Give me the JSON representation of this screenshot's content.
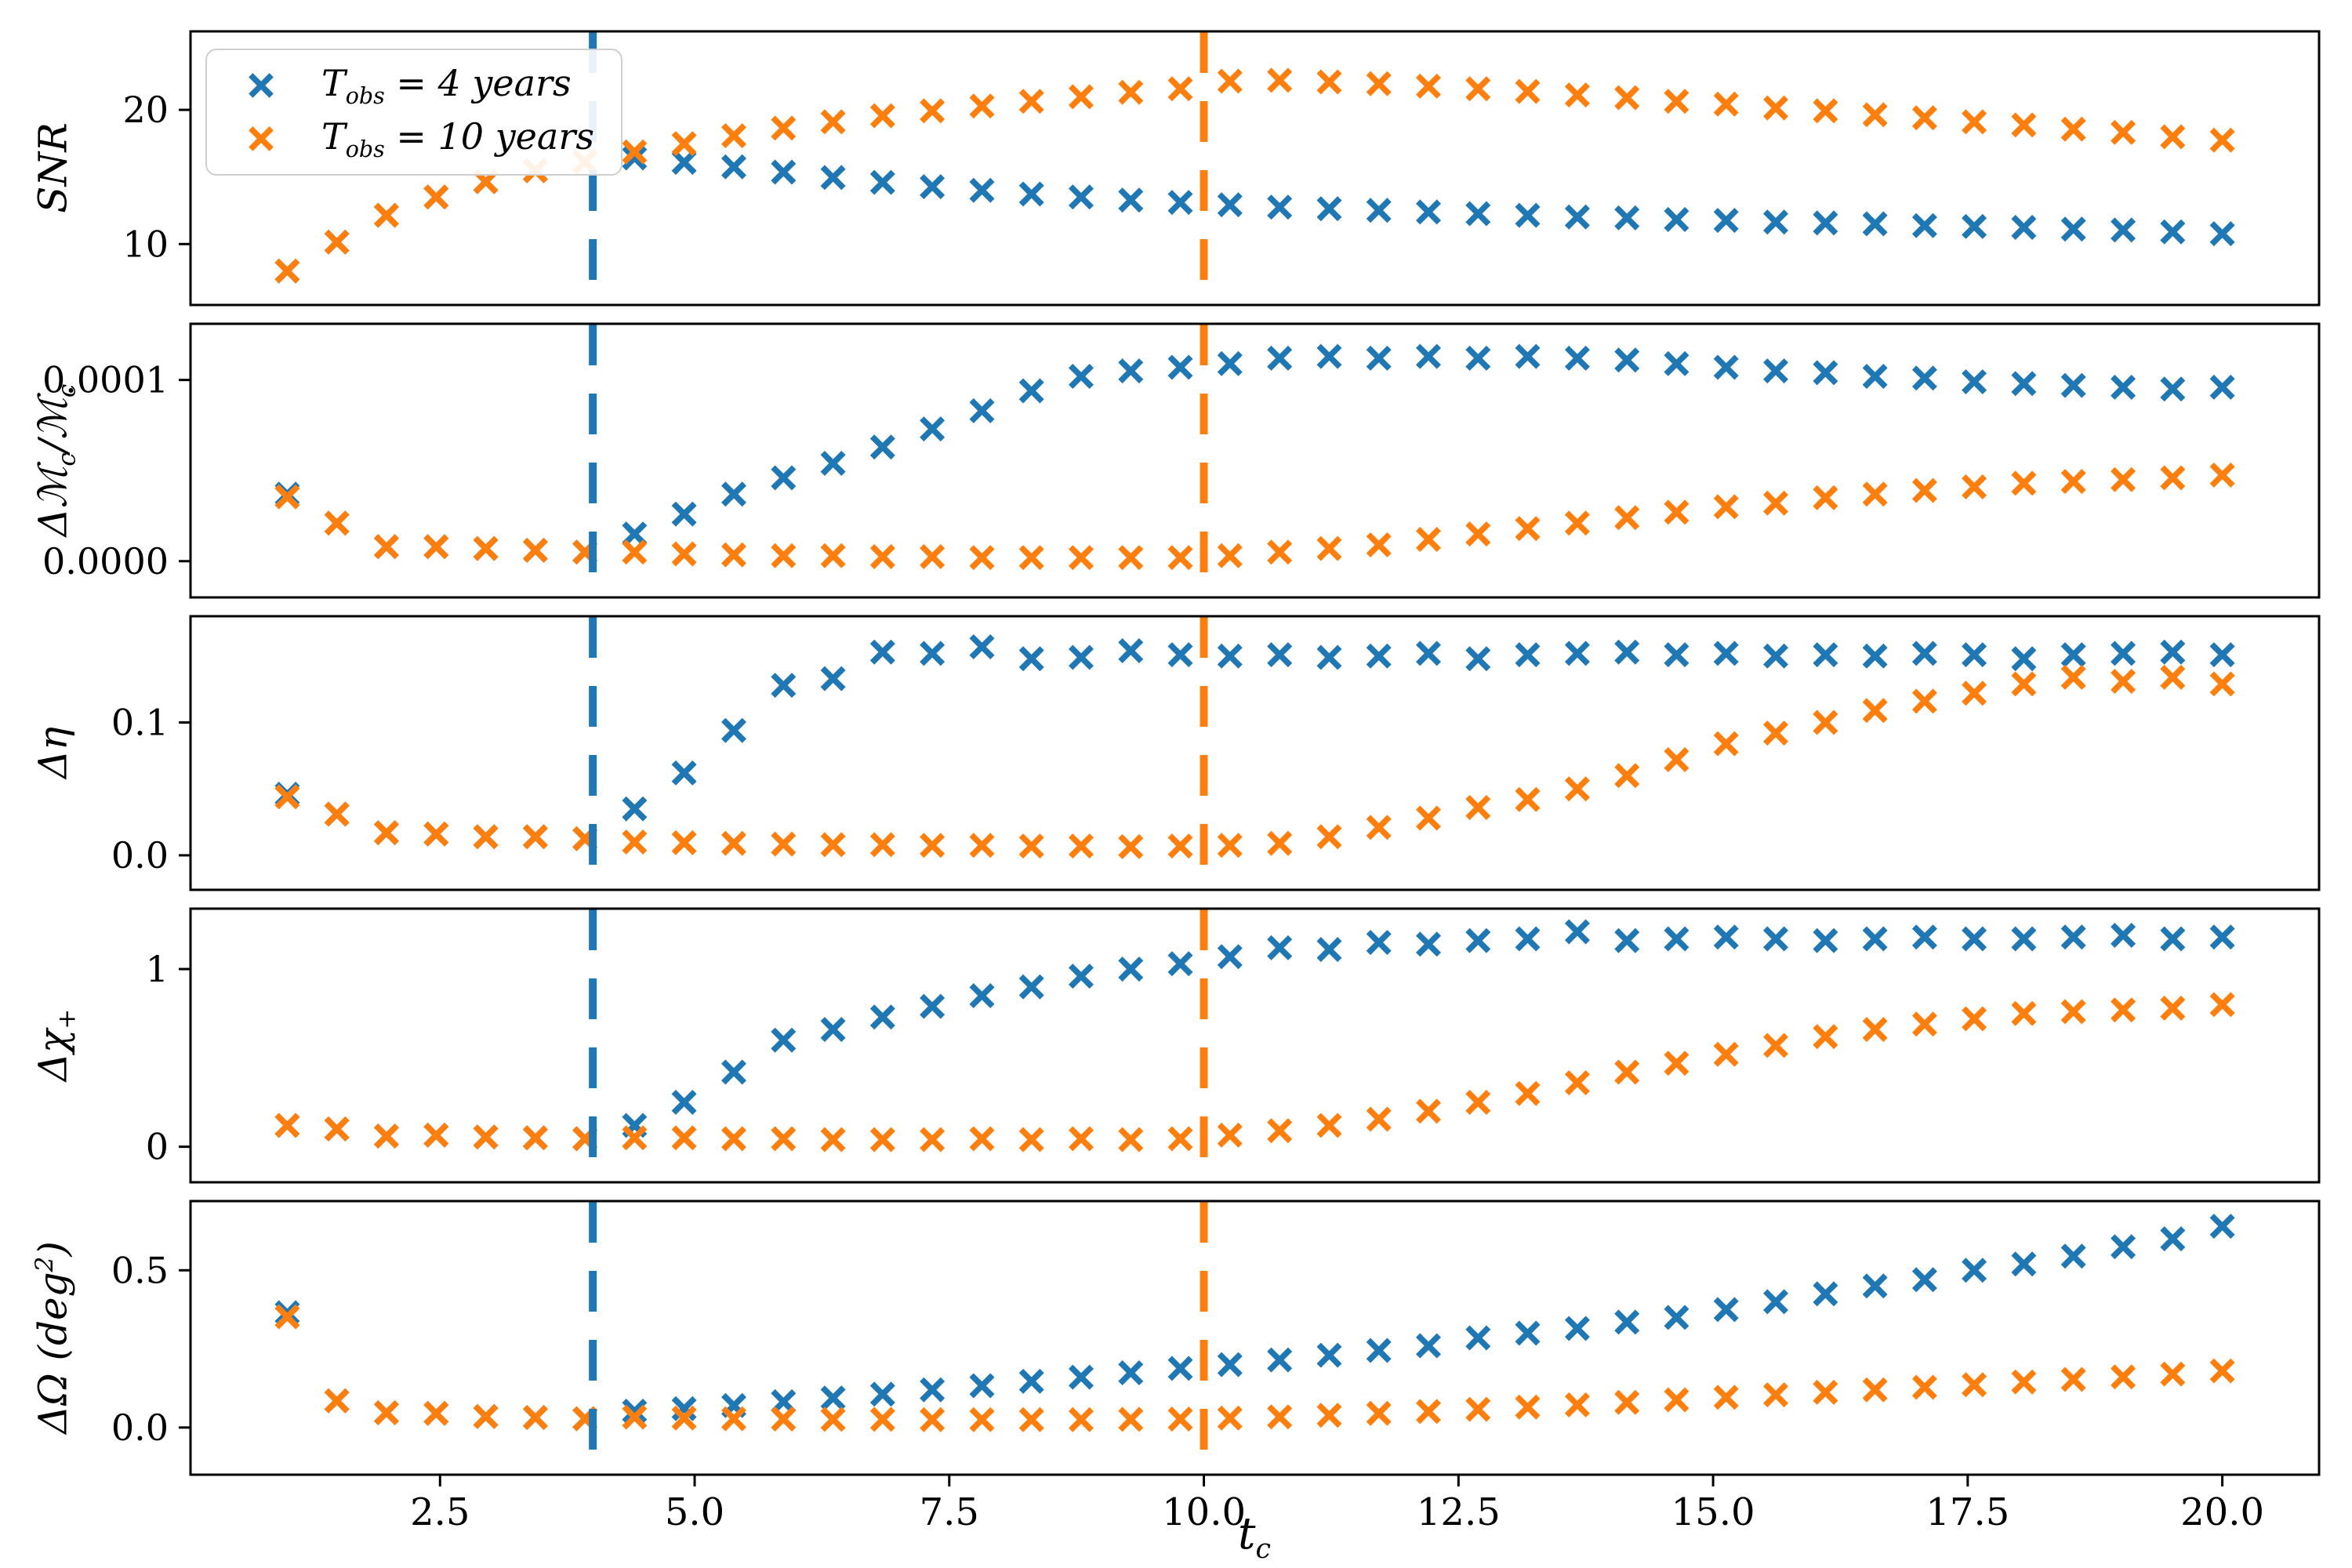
{
  "colors": {
    "blue": "#1f77b4",
    "orange": "#ff7f0e",
    "axis": "#000000",
    "legend_border": "#cfcfcf"
  },
  "legend": {
    "items": [
      {
        "color_key": "blue",
        "p0": "T",
        "s0": "obs",
        "p1": " = 4 years"
      },
      {
        "color_key": "orange",
        "p0": "T",
        "s0": "obs",
        "p1": " = 10 years"
      }
    ]
  },
  "xlabel": {
    "p0": "t",
    "s0": "c"
  },
  "xticks": {
    "values": [
      2.5,
      5.0,
      7.5,
      10.0,
      12.5,
      15.0,
      17.5,
      20.0
    ],
    "labels": [
      "2.5",
      "5.0",
      "7.5",
      "10.0",
      "12.5",
      "15.0",
      "17.5",
      "20.0"
    ]
  },
  "vlines": [
    {
      "x": 4,
      "color_key": "blue"
    },
    {
      "x": 10,
      "color_key": "orange"
    }
  ],
  "ylabels": [
    {
      "p0": "SNR"
    },
    {
      "p0": "Δℳ",
      "s0": "c",
      "p1": "/ℳ",
      "s1": "c"
    },
    {
      "p0": "Δη"
    },
    {
      "p0": "Δχ",
      "s0": "+"
    },
    {
      "p0": "ΔΩ (deg",
      "sup0": "2",
      "p3": ")"
    }
  ],
  "chart_data": {
    "type": "scatter",
    "title": "",
    "xlabel": "t_c",
    "xlim": [
      0.05,
      20.95
    ],
    "legend_position": "upper-left of top panel",
    "grid": false,
    "series_names": [
      "T_obs = 4 years",
      "T_obs = 10 years"
    ],
    "vlines": [
      {
        "x": 4,
        "series": "T_obs = 4 years"
      },
      {
        "x": 10,
        "series": "T_obs = 10 years"
      }
    ],
    "x": [
      1.0,
      1.487,
      1.974,
      2.462,
      2.949,
      3.436,
      3.923,
      4.41,
      4.897,
      5.385,
      5.872,
      6.359,
      6.846,
      7.333,
      7.821,
      8.308,
      8.795,
      9.282,
      9.769,
      10.256,
      10.744,
      11.231,
      11.718,
      12.205,
      12.692,
      13.179,
      13.667,
      14.154,
      14.641,
      15.128,
      15.615,
      16.103,
      16.59,
      17.077,
      17.564,
      18.051,
      18.538,
      19.026,
      19.513,
      20.0
    ],
    "panels": [
      {
        "id": "snr",
        "ylabel_text": "SNR",
        "yscale": "log",
        "ylim": [
          7.3,
          30
        ],
        "yticks": {
          "values": [
            10,
            20
          ],
          "labels": [
            "10",
            "20"
          ]
        },
        "blue": [
          8.7,
          10.1,
          11.6,
          12.75,
          13.8,
          14.6,
          15.3,
          15.6,
          15.25,
          14.9,
          14.5,
          14.1,
          13.75,
          13.45,
          13.2,
          12.95,
          12.75,
          12.55,
          12.4,
          12.25,
          12.1,
          12.0,
          11.9,
          11.8,
          11.7,
          11.6,
          11.5,
          11.45,
          11.35,
          11.3,
          11.2,
          11.15,
          11.1,
          11.0,
          10.95,
          10.9,
          10.8,
          10.75,
          10.65,
          10.55
        ],
        "orange": [
          8.7,
          10.1,
          11.6,
          12.75,
          13.8,
          14.6,
          15.3,
          16.1,
          16.8,
          17.5,
          18.2,
          18.8,
          19.4,
          19.9,
          20.4,
          20.9,
          21.4,
          21.9,
          22.3,
          23.2,
          23.3,
          23.1,
          22.9,
          22.6,
          22.3,
          22.0,
          21.6,
          21.3,
          20.9,
          20.6,
          20.2,
          19.9,
          19.5,
          19.2,
          18.8,
          18.5,
          18.1,
          17.8,
          17.4,
          17.1
        ]
      },
      {
        "id": "mchirp",
        "ylabel_text": "ΔM_c/M_c",
        "yscale": "linear",
        "ylim": [
          -2e-05,
          0.000131
        ],
        "yticks": {
          "values": [
            0.0,
            0.0001
          ],
          "labels": [
            "0.0000",
            "0.0001"
          ]
        },
        "blue": [
          3.7e-05,
          2.1e-05,
          8e-06,
          8e-06,
          7e-06,
          6e-06,
          5e-06,
          1.5e-05,
          2.6e-05,
          3.7e-05,
          4.6e-05,
          5.4e-05,
          6.3e-05,
          7.3e-05,
          8.3e-05,
          9.4e-05,
          0.000102,
          0.000105,
          0.000107,
          0.000109,
          0.000112,
          0.000113,
          0.000112,
          0.000113,
          0.000112,
          0.000113,
          0.000112,
          0.000111,
          0.000109,
          0.000107,
          0.000105,
          0.000104,
          0.000102,
          0.000101,
          9.9e-05,
          9.8e-05,
          9.7e-05,
          9.6e-05,
          9.5e-05,
          9.6e-05
        ],
        "orange": [
          3.55e-05,
          2.1e-05,
          8e-06,
          8e-06,
          7e-06,
          6e-06,
          5e-06,
          5e-06,
          4e-06,
          3.5e-06,
          3e-06,
          3e-06,
          2.5e-06,
          2.5e-06,
          2e-06,
          2e-06,
          2e-06,
          2e-06,
          2e-06,
          3e-06,
          5e-06,
          7e-06,
          9e-06,
          1.2e-05,
          1.5e-05,
          1.8e-05,
          2.1e-05,
          2.4e-05,
          2.7e-05,
          3e-05,
          3.2e-05,
          3.5e-05,
          3.7e-05,
          3.9e-05,
          4.1e-05,
          4.3e-05,
          4.4e-05,
          4.5e-05,
          4.6e-05,
          4.75e-05
        ]
      },
      {
        "id": "eta",
        "ylabel_text": "Δη",
        "yscale": "linear",
        "ylim": [
          -0.026,
          0.18
        ],
        "yticks": {
          "values": [
            0.0,
            0.1
          ],
          "labels": [
            "0.0",
            "0.1"
          ]
        },
        "blue": [
          0.046,
          0.031,
          0.017,
          0.016,
          0.014,
          0.014,
          0.0125,
          0.035,
          0.062,
          0.094,
          0.128,
          0.133,
          0.153,
          0.152,
          0.157,
          0.148,
          0.149,
          0.154,
          0.151,
          0.15,
          0.151,
          0.149,
          0.15,
          0.152,
          0.148,
          0.151,
          0.152,
          0.153,
          0.151,
          0.152,
          0.15,
          0.151,
          0.15,
          0.152,
          0.151,
          0.148,
          0.151,
          0.152,
          0.153,
          0.151
        ],
        "orange": [
          0.044,
          0.031,
          0.017,
          0.016,
          0.014,
          0.014,
          0.0125,
          0.01,
          0.0095,
          0.009,
          0.0085,
          0.008,
          0.008,
          0.0075,
          0.0075,
          0.007,
          0.007,
          0.0065,
          0.007,
          0.0075,
          0.009,
          0.014,
          0.021,
          0.028,
          0.036,
          0.042,
          0.05,
          0.06,
          0.072,
          0.084,
          0.092,
          0.1,
          0.109,
          0.116,
          0.122,
          0.129,
          0.134,
          0.131,
          0.134,
          0.129
        ]
      },
      {
        "id": "chi",
        "ylabel_text": "Δχ_+",
        "yscale": "linear",
        "ylim": [
          -0.2,
          1.34
        ],
        "yticks": {
          "values": [
            0,
            1
          ],
          "labels": [
            "0",
            "1"
          ]
        },
        "blue": [
          0.12,
          0.1,
          0.06,
          0.065,
          0.055,
          0.05,
          0.045,
          0.12,
          0.25,
          0.42,
          0.6,
          0.66,
          0.73,
          0.79,
          0.85,
          0.9,
          0.96,
          1.0,
          1.03,
          1.07,
          1.12,
          1.11,
          1.15,
          1.14,
          1.16,
          1.17,
          1.21,
          1.16,
          1.17,
          1.18,
          1.17,
          1.16,
          1.17,
          1.18,
          1.17,
          1.17,
          1.18,
          1.19,
          1.17,
          1.18
        ],
        "orange": [
          0.12,
          0.1,
          0.06,
          0.065,
          0.055,
          0.05,
          0.045,
          0.05,
          0.05,
          0.045,
          0.045,
          0.04,
          0.04,
          0.04,
          0.045,
          0.04,
          0.045,
          0.04,
          0.045,
          0.065,
          0.09,
          0.12,
          0.155,
          0.2,
          0.25,
          0.3,
          0.36,
          0.42,
          0.47,
          0.52,
          0.57,
          0.62,
          0.66,
          0.69,
          0.72,
          0.75,
          0.76,
          0.77,
          0.78,
          0.8
        ]
      },
      {
        "id": "omega",
        "ylabel_text": "ΔΩ (deg^2)",
        "yscale": "linear",
        "ylim": [
          -0.15,
          0.72
        ],
        "yticks": {
          "values": [
            0.0,
            0.5
          ],
          "labels": [
            "0.0",
            "0.5"
          ]
        },
        "blue": [
          0.365,
          0.085,
          0.047,
          0.045,
          0.035,
          0.032,
          0.028,
          0.052,
          0.06,
          0.07,
          0.082,
          0.094,
          0.106,
          0.12,
          0.133,
          0.147,
          0.16,
          0.174,
          0.188,
          0.2,
          0.215,
          0.23,
          0.245,
          0.26,
          0.285,
          0.3,
          0.315,
          0.335,
          0.35,
          0.375,
          0.4,
          0.425,
          0.45,
          0.47,
          0.5,
          0.52,
          0.545,
          0.575,
          0.6,
          0.64
        ],
        "orange": [
          0.352,
          0.085,
          0.047,
          0.045,
          0.035,
          0.032,
          0.028,
          0.033,
          0.03,
          0.028,
          0.027,
          0.026,
          0.026,
          0.025,
          0.025,
          0.025,
          0.025,
          0.026,
          0.027,
          0.03,
          0.034,
          0.039,
          0.045,
          0.051,
          0.058,
          0.065,
          0.072,
          0.08,
          0.088,
          0.096,
          0.104,
          0.112,
          0.12,
          0.128,
          0.136,
          0.145,
          0.153,
          0.161,
          0.17,
          0.18
        ]
      }
    ]
  }
}
